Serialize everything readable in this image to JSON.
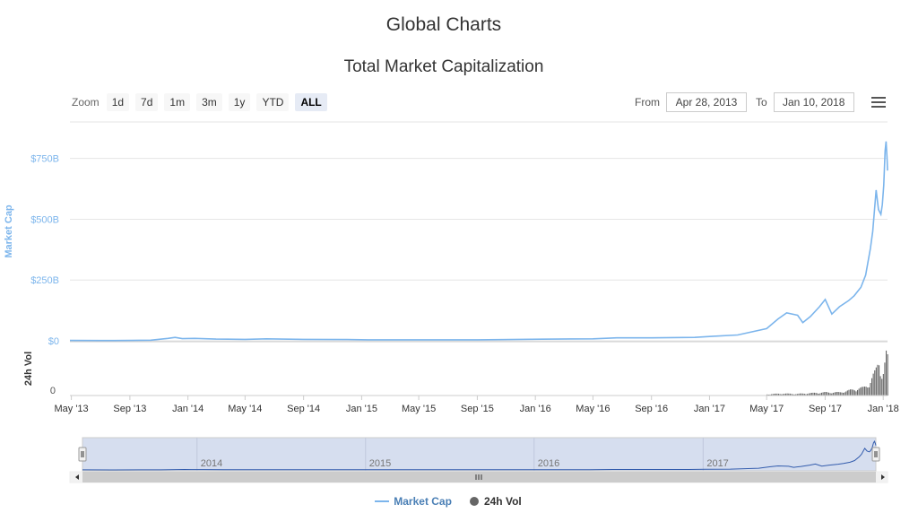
{
  "page": {
    "title": "Global Charts",
    "subtitle": "Total Market Capitalization"
  },
  "zoom": {
    "label": "Zoom",
    "buttons": [
      "1d",
      "7d",
      "1m",
      "3m",
      "1y",
      "YTD",
      "ALL"
    ],
    "active": "ALL"
  },
  "range": {
    "from_label": "From",
    "from_value": "Apr 28, 2013",
    "to_label": "To",
    "to_value": "Jan 10, 2018"
  },
  "icons": {
    "menu": "hamburger-menu-icon",
    "scroll_left": "arrow-left-icon",
    "scroll_right": "arrow-right-icon"
  },
  "colors": {
    "market_cap": "#7cb5ec",
    "volume": "#666666",
    "navigator_fill": "#ccd6eb"
  },
  "legend": [
    "Market Cap",
    "24h Vol"
  ],
  "chart_data": {
    "type": "line",
    "title": "Total Market Capitalization",
    "x_range": [
      "2013-04-28",
      "2018-01-10"
    ],
    "x_ticks": [
      "May '13",
      "Sep '13",
      "Jan '14",
      "May '14",
      "Sep '14",
      "Jan '15",
      "May '15",
      "Sep '15",
      "Jan '16",
      "May '16",
      "Sep '16",
      "Jan '17",
      "May '17",
      "Sep '17",
      "Jan '18"
    ],
    "navigator_ticks": [
      "2014",
      "2015",
      "2016",
      "2017"
    ],
    "market_cap": {
      "ylabel": "Market Cap",
      "ylim": [
        0,
        900
      ],
      "y_ticks": [
        "$0",
        "$250B",
        "$500B",
        "$750B"
      ],
      "y_tick_values": [
        0,
        250,
        500,
        750
      ],
      "unit": "billions USD",
      "points": [
        [
          "2013-04-28",
          1.5
        ],
        [
          "2013-07-01",
          1.2
        ],
        [
          "2013-09-01",
          1.6
        ],
        [
          "2013-10-15",
          2.5
        ],
        [
          "2013-11-20",
          10
        ],
        [
          "2013-12-05",
          14
        ],
        [
          "2013-12-20",
          9
        ],
        [
          "2014-01-15",
          10
        ],
        [
          "2014-03-01",
          7
        ],
        [
          "2014-05-01",
          6
        ],
        [
          "2014-06-15",
          8
        ],
        [
          "2014-09-01",
          6
        ],
        [
          "2014-12-01",
          5
        ],
        [
          "2015-01-15",
          4
        ],
        [
          "2015-05-01",
          4
        ],
        [
          "2015-09-01",
          4
        ],
        [
          "2015-12-01",
          6
        ],
        [
          "2016-01-15",
          6.5
        ],
        [
          "2016-05-01",
          8
        ],
        [
          "2016-06-20",
          12
        ],
        [
          "2016-09-01",
          12
        ],
        [
          "2016-12-01",
          14
        ],
        [
          "2017-01-05",
          18
        ],
        [
          "2017-03-01",
          24
        ],
        [
          "2017-05-01",
          50
        ],
        [
          "2017-05-25",
          90
        ],
        [
          "2017-06-12",
          115
        ],
        [
          "2017-07-05",
          105
        ],
        [
          "2017-07-16",
          75
        ],
        [
          "2017-08-01",
          100
        ],
        [
          "2017-08-20",
          140
        ],
        [
          "2017-09-01",
          170
        ],
        [
          "2017-09-15",
          110
        ],
        [
          "2017-10-01",
          140
        ],
        [
          "2017-10-20",
          165
        ],
        [
          "2017-11-01",
          185
        ],
        [
          "2017-11-15",
          220
        ],
        [
          "2017-11-25",
          270
        ],
        [
          "2017-12-05",
          380
        ],
        [
          "2017-12-10",
          450
        ],
        [
          "2017-12-17",
          620
        ],
        [
          "2017-12-22",
          540
        ],
        [
          "2017-12-27",
          520
        ],
        [
          "2017-12-30",
          560
        ],
        [
          "2018-01-02",
          640
        ],
        [
          "2018-01-05",
          780
        ],
        [
          "2018-01-07",
          820
        ],
        [
          "2018-01-09",
          750
        ],
        [
          "2018-01-10",
          700
        ]
      ]
    },
    "volume": {
      "ylabel": "24h Vol",
      "y_ticks": [
        "0"
      ],
      "ylim": [
        0,
        60
      ],
      "unit": "billions USD",
      "points": [
        [
          "2017-05-01",
          1.5
        ],
        [
          "2017-06-01",
          2.5
        ],
        [
          "2017-07-01",
          2
        ],
        [
          "2017-08-01",
          3
        ],
        [
          "2017-09-01",
          4
        ],
        [
          "2017-10-01",
          4
        ],
        [
          "2017-11-01",
          8
        ],
        [
          "2017-11-20",
          10
        ],
        [
          "2017-12-01",
          15
        ],
        [
          "2017-12-10",
          25
        ],
        [
          "2017-12-15",
          30
        ],
        [
          "2017-12-22",
          45
        ],
        [
          "2017-12-28",
          28
        ],
        [
          "2018-01-01",
          30
        ],
        [
          "2018-01-05",
          48
        ],
        [
          "2018-01-08",
          55
        ],
        [
          "2018-01-10",
          40
        ]
      ]
    },
    "grid": true,
    "legend_position": "bottom-center"
  }
}
